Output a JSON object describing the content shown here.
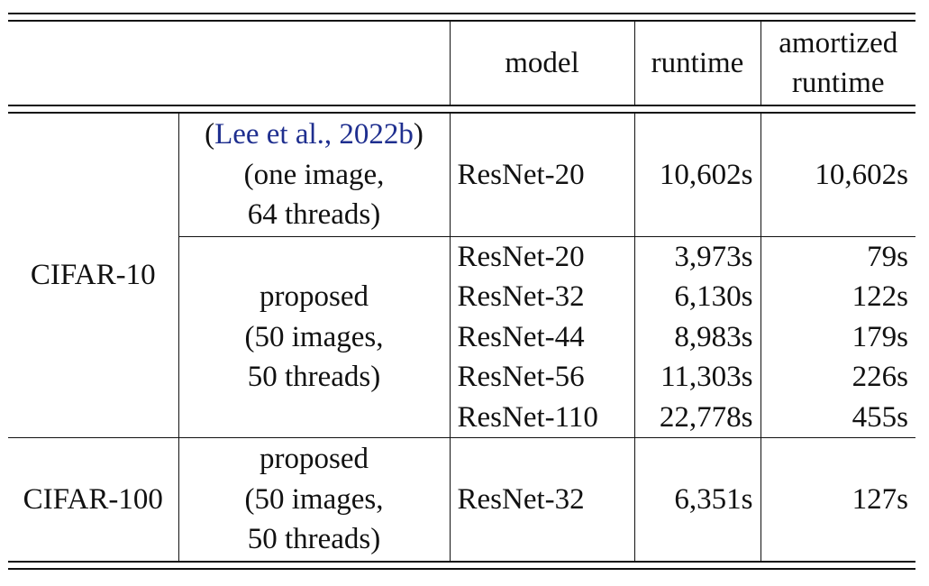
{
  "header": {
    "model": "model",
    "runtime": "runtime",
    "amortized_line1": "amortized",
    "amortized_line2": "runtime"
  },
  "rows": {
    "cifar10": {
      "dataset": "CIFAR-10",
      "baseline": {
        "open_paren": "(",
        "cite": "Lee et al., 2022b",
        "close_paren": ")",
        "line2": "(one image,",
        "line3": "64 threads)",
        "model": "ResNet-20",
        "runtime": "10,602s",
        "amortized": "10,602s"
      },
      "proposed": {
        "line1": "proposed",
        "line2": "(50 images,",
        "line3": "50 threads)",
        "entries": [
          {
            "model": "ResNet-20",
            "runtime": "3,973s",
            "amortized": "79s"
          },
          {
            "model": "ResNet-32",
            "runtime": "6,130s",
            "amortized": "122s"
          },
          {
            "model": "ResNet-44",
            "runtime": "8,983s",
            "amortized": "179s"
          },
          {
            "model": "ResNet-56",
            "runtime": "11,303s",
            "amortized": "226s"
          },
          {
            "model": "ResNet-110",
            "runtime": "22,778s",
            "amortized": "455s"
          }
        ]
      }
    },
    "cifar100": {
      "dataset": "CIFAR-100",
      "line1": "proposed",
      "line2": "(50 images,",
      "line3": "50 threads)",
      "model": "ResNet-32",
      "runtime": "6,351s",
      "amortized": "127s"
    }
  }
}
